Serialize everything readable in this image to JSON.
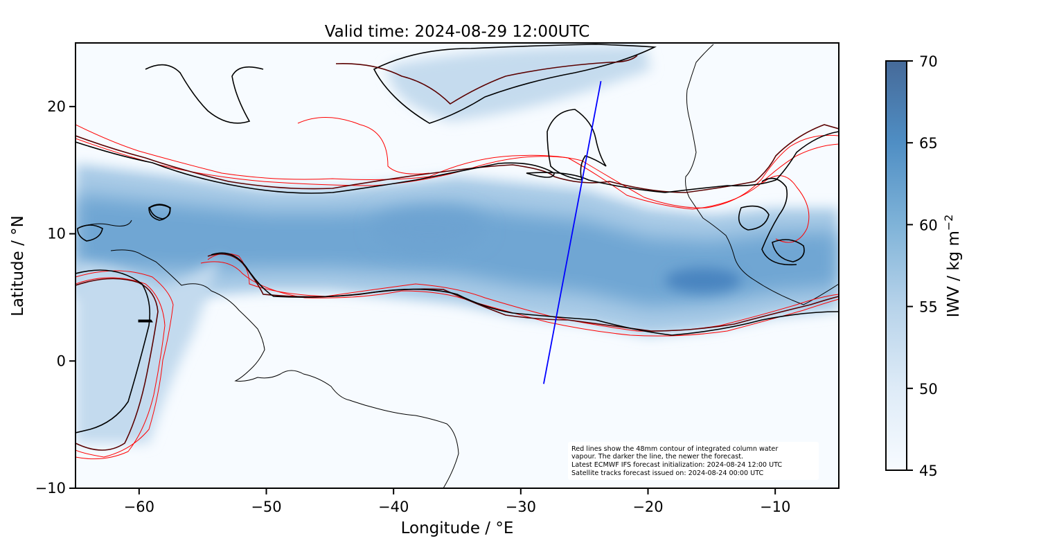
{
  "chart_data": {
    "type": "heatmap",
    "title": "Valid time: 2024-08-29 12:00UTC",
    "xlabel": "Longitude / °E",
    "ylabel": "Latitude / °N",
    "xlim": [
      -65,
      -5
    ],
    "ylim": [
      -10,
      25
    ],
    "xticks": [
      -60,
      -50,
      -40,
      -30,
      -20,
      -10
    ],
    "xtick_labels": [
      "−60",
      "−50",
      "−40",
      "−30",
      "−20",
      "−10"
    ],
    "yticks": [
      -10,
      0,
      10,
      20
    ],
    "ytick_labels": [
      "−10",
      "0",
      "10",
      "20"
    ],
    "colorbar": {
      "label": "IWV / kg m",
      "label_sup": "−2",
      "range": [
        45,
        70
      ],
      "ticks": [
        45,
        50,
        55,
        60,
        65,
        70
      ],
      "tick_labels": [
        "45",
        "50",
        "55",
        "60",
        "65",
        "70"
      ],
      "colormap": "Blues",
      "low_color": "#f7fbff",
      "high_color": "#466a99"
    },
    "grid": false,
    "colors": {
      "contour_newest": "#000000",
      "contour_older": "#8b0000",
      "contour_oldest": "#ff0000",
      "satellite_track": "#0000ff",
      "coastline": "#000000"
    },
    "satellite_track": {
      "x": [
        -28.2,
        -23.7
      ],
      "y": [
        -1.8,
        22.0
      ]
    },
    "moist_band": {
      "x": [
        -65,
        -57,
        -50,
        -45,
        -40,
        -35,
        -30,
        -25,
        -20,
        -15,
        -10,
        -5
      ],
      "north_edge": [
        15.5,
        14.5,
        13.5,
        13.5,
        14.0,
        14.5,
        14.0,
        13.5,
        12.0,
        11.5,
        12.0,
        12.0
      ],
      "south_edge": [
        5.0,
        5.0,
        5.5,
        5.5,
        5.0,
        4.5,
        3.5,
        3.0,
        2.0,
        2.5,
        3.5,
        4.0
      ],
      "core_iwv": 58
    },
    "annotation": [
      "Red lines show the 48mm contour of integrated column water",
      "vapour. The darker the line, the newer the forecast.",
      "Latest ECMWF IFS forecast initialization: 2024-08-24 12:00 UTC",
      "Satellite tracks forecast issued on: 2024-08-24 00:00 UTC"
    ]
  }
}
